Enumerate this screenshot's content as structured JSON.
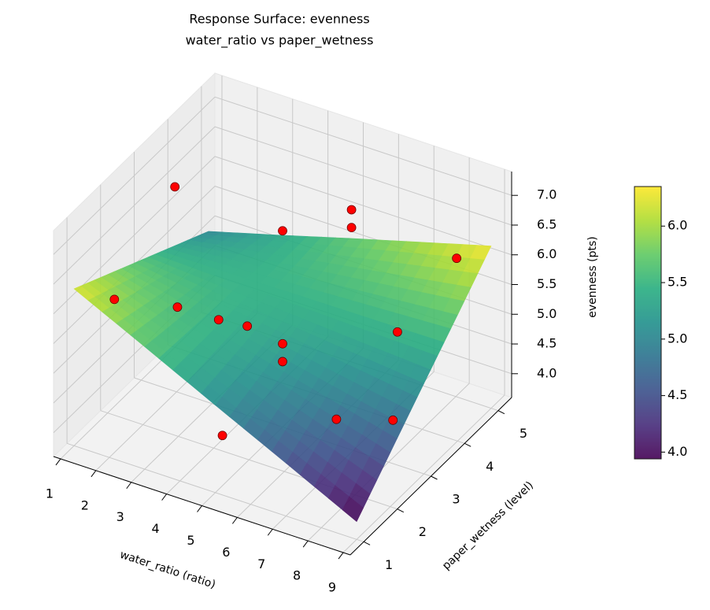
{
  "chart_data": {
    "type": "surface3d",
    "title": [
      "Response Surface: evenness",
      "water_ratio vs paper_wetness"
    ],
    "xlabel": "water_ratio (ratio)",
    "ylabel": "paper_wetness (level)",
    "zlabel": "evenness (pts)",
    "xlim": [
      0.8,
      9.2
    ],
    "ylim": [
      0.6,
      5.4
    ],
    "zlim": [
      3.6,
      7.4
    ],
    "xticks": [
      1,
      2,
      3,
      4,
      5,
      6,
      7,
      8,
      9
    ],
    "yticks": [
      1,
      2,
      3,
      4,
      5
    ],
    "zticks": [
      {
        "value": 4,
        "label": "4.0"
      },
      {
        "value": 4.5,
        "label": "4.5"
      },
      {
        "value": 5,
        "label": "5.0"
      },
      {
        "value": 5.5,
        "label": "5.5"
      },
      {
        "value": 6,
        "label": "6.0"
      },
      {
        "value": 6.5,
        "label": "6.5"
      },
      {
        "value": 7,
        "label": "7.0"
      }
    ],
    "grid": true,
    "surface": {
      "colormap": "viridis",
      "alpha": 0.9,
      "x": [
        1,
        3,
        5,
        7,
        9
      ],
      "y": [
        1,
        2,
        3,
        4,
        5
      ],
      "z": [
        [
          6.24,
          5.66,
          5.07,
          4.49,
          3.9
        ],
        [
          5.93,
          5.57,
          5.22,
          4.86,
          4.51
        ],
        [
          5.62,
          5.49,
          5.37,
          5.24,
          5.12
        ],
        [
          5.31,
          5.41,
          5.52,
          5.62,
          5.72
        ],
        [
          5.0,
          5.33,
          5.67,
          6.0,
          6.33
        ]
      ]
    },
    "points": {
      "color": "#ff0000",
      "x": [
        1,
        5,
        6,
        6,
        1,
        2.5,
        3,
        4,
        5,
        5,
        7.3,
        8.5,
        5.2,
        7,
        8.6
      ],
      "y": [
        4,
        3,
        4,
        4,
        2.2,
        2.5,
        3.2,
        3,
        3,
        3,
        4,
        4.5,
        1,
        2.5,
        2.5
      ],
      "z": [
        6.3,
        6.9,
        6.9,
        6.6,
        5.4,
        5.4,
        4.9,
        5.1,
        5.0,
        4.7,
        5.1,
        6.3,
        4.6,
        4.4,
        4.7
      ]
    },
    "colorbar": {
      "lim": [
        3.94,
        6.35
      ],
      "ticks": [
        {
          "value": 4,
          "label": "4.0"
        },
        {
          "value": 4.5,
          "label": "4.5"
        },
        {
          "value": 5,
          "label": "5.0"
        },
        {
          "value": 5.5,
          "label": "5.5"
        },
        {
          "value": 6,
          "label": "6.0"
        }
      ]
    }
  }
}
